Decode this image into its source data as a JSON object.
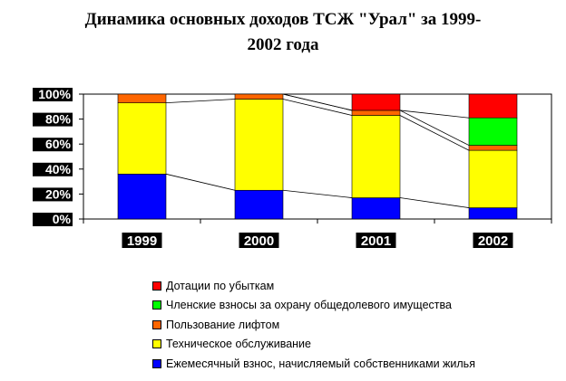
{
  "title_line1": "Динамика основных доходов ТСЖ \"Урал\" за 1999-",
  "title_line2": "2002 года",
  "chart_data": {
    "type": "bar",
    "stacked": true,
    "percent": true,
    "categories": [
      "1999",
      "2000",
      "2001",
      "2002"
    ],
    "series": [
      {
        "name": "Ежемесячный взнос, начисляемый собственниками жилья",
        "color": "#0000FF",
        "values": [
          36,
          23,
          17,
          9
        ]
      },
      {
        "name": "Техническое обслуживание",
        "color": "#FFFF00",
        "values": [
          57,
          73,
          66,
          46
        ]
      },
      {
        "name": "Пользование лифтом",
        "color": "#FF6600",
        "values": [
          7,
          4,
          4,
          4
        ]
      },
      {
        "name": "Членские взносы за охрану общедолевого имущества",
        "color": "#00FF00",
        "values": [
          0,
          0,
          0,
          22
        ]
      },
      {
        "name": "Дотации по убыткам",
        "color": "#FF0000",
        "values": [
          0,
          0,
          13,
          19
        ]
      }
    ],
    "yticks": [
      "0%",
      "20%",
      "40%",
      "60%",
      "80%",
      "100%"
    ],
    "ylim": [
      0,
      100
    ],
    "legend_position": "bottom"
  }
}
